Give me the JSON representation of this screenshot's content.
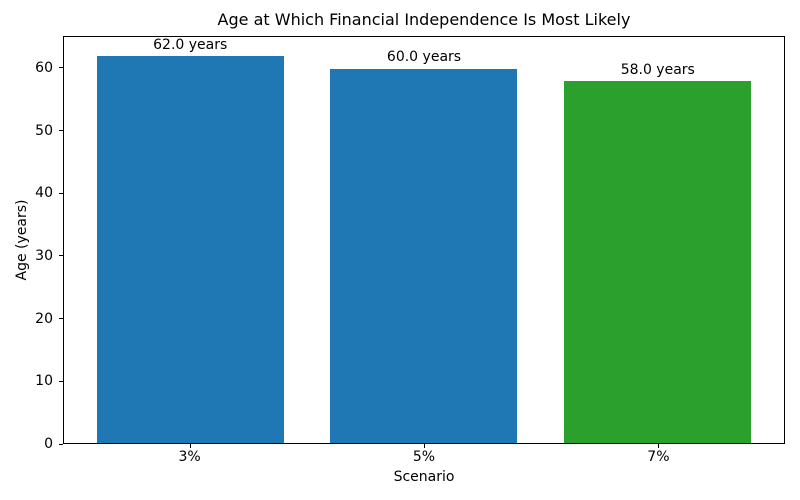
{
  "chart_data": {
    "type": "bar",
    "title": "Age at Which Financial Independence Is Most Likely",
    "xlabel": "Scenario",
    "ylabel": "Age (years)",
    "categories": [
      "3%",
      "5%",
      "7%"
    ],
    "values": [
      62.0,
      60.0,
      58.0
    ],
    "bar_value_labels": [
      "62.0 years",
      "60.0 years",
      "58.0 years"
    ],
    "bar_colors": [
      "#1f77b4",
      "#1f77b4",
      "#2ca02c"
    ],
    "ylim": [
      0,
      65.1
    ],
    "xlim": [
      -0.54,
      2.54
    ],
    "yticks": [
      0,
      10,
      20,
      30,
      40,
      50,
      60
    ],
    "bar_width": 0.8,
    "label_offset_y": 0.5,
    "grid": false,
    "legend_position": "none",
    "axis_color": "#000000"
  }
}
